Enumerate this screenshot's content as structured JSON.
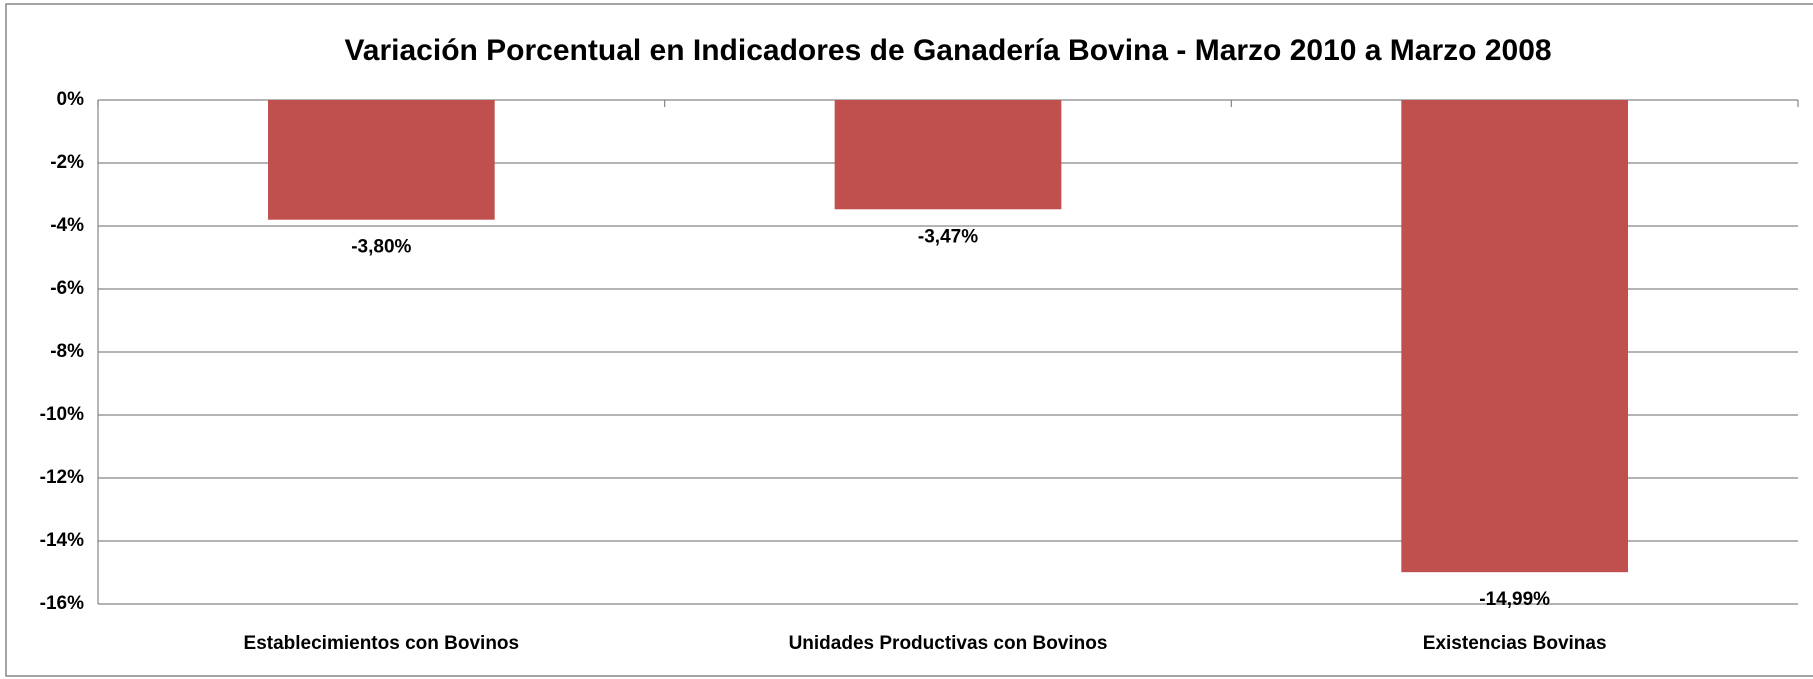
{
  "chart_data": {
    "type": "bar",
    "title": "Variación Porcentual en Indicadores de Ganadería Bovina - Marzo 2010 a Marzo 2008",
    "categories": [
      "Establecimientos con Bovinos",
      "Unidades Productivas con Bovinos",
      "Existencias Bovinas"
    ],
    "values": [
      -3.8,
      -3.47,
      -14.99
    ],
    "value_labels": [
      "-3,80%",
      "-3,47%",
      "-14,99%"
    ],
    "color": "#c0504d",
    "ylim": [
      -16,
      0
    ],
    "yticks": [
      {
        "value": 0,
        "label": "0%"
      },
      {
        "value": -2,
        "label": "-2%"
      },
      {
        "value": -4,
        "label": "-4%"
      },
      {
        "value": -6,
        "label": "-6%"
      },
      {
        "value": -8,
        "label": "-8%"
      },
      {
        "value": -10,
        "label": "-10%"
      },
      {
        "value": -12,
        "label": "-12%"
      },
      {
        "value": -14,
        "label": "-14%"
      },
      {
        "value": -16,
        "label": "-16%"
      }
    ],
    "grid": true
  }
}
